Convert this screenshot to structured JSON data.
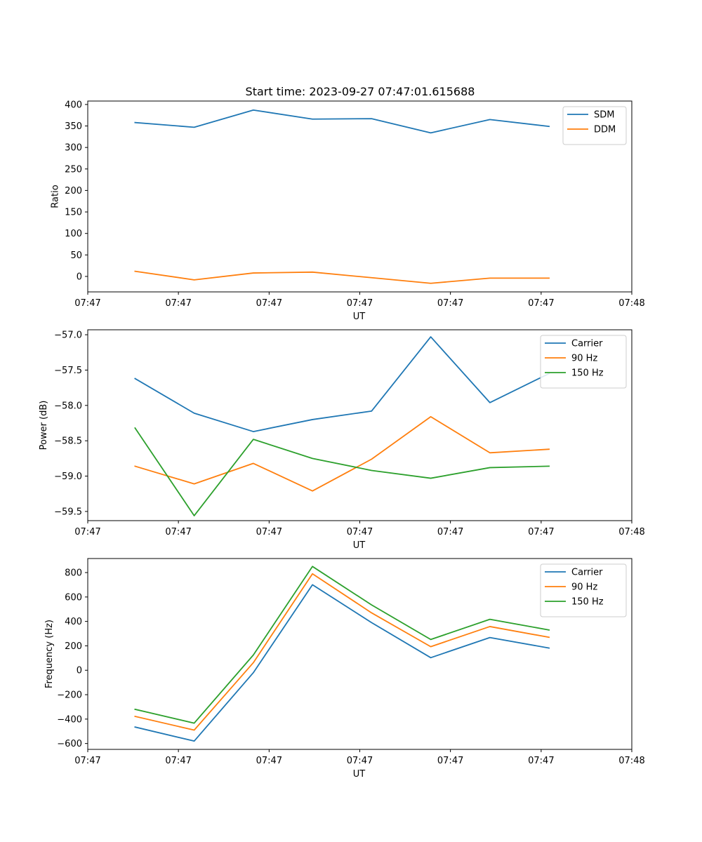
{
  "figure_title": "Start time: 2023-09-27 07:47:01.615688",
  "colors": {
    "blue": "#1f77b4",
    "orange": "#ff7f0e",
    "green": "#2ca02c",
    "axes": "#000000",
    "background": "#ffffff"
  },
  "chart_data": [
    {
      "type": "line",
      "xlabel": "UT",
      "ylabel": "Ratio",
      "x": [
        1,
        2,
        3,
        4,
        5,
        6,
        7,
        8
      ],
      "xlim": [
        0.2,
        9.4
      ],
      "xticks": [
        0.2,
        1.733,
        3.267,
        4.8,
        6.333,
        7.867,
        9.4
      ],
      "xtick_labels": [
        "07:47",
        "07:47",
        "07:47",
        "07:47",
        "07:47",
        "07:47",
        "07:48"
      ],
      "ylim": [
        -36,
        408
      ],
      "yticks": [
        0,
        50,
        100,
        150,
        200,
        250,
        300,
        350,
        400
      ],
      "ytick_labels": [
        "0",
        "50",
        "100",
        "150",
        "200",
        "250",
        "300",
        "350",
        "400"
      ],
      "legend_position": "upper-right",
      "series": [
        {
          "name": "SDM",
          "color": "#1f77b4",
          "values": [
            358,
            347,
            387,
            366,
            367,
            334,
            365,
            349
          ]
        },
        {
          "name": "DDM",
          "color": "#ff7f0e",
          "values": [
            12,
            -8,
            8,
            10,
            -3,
            -16,
            -4,
            -4
          ]
        }
      ]
    },
    {
      "type": "line",
      "xlabel": "UT",
      "ylabel": "Power (dB)",
      "x": [
        1,
        2,
        3,
        4,
        5,
        6,
        7,
        8
      ],
      "xlim": [
        0.2,
        9.4
      ],
      "xticks": [
        0.2,
        1.733,
        3.267,
        4.8,
        6.333,
        7.867,
        9.4
      ],
      "xtick_labels": [
        "07:47",
        "07:47",
        "07:47",
        "07:47",
        "07:47",
        "07:47",
        "07:48"
      ],
      "ylim": [
        -59.63,
        -56.93
      ],
      "yticks": [
        -59.5,
        -59.0,
        -58.5,
        -58.0,
        -57.5,
        -57.0
      ],
      "ytick_labels": [
        "−59.5",
        "−59.0",
        "−58.5",
        "−58.0",
        "−57.5",
        "−57.0"
      ],
      "legend_position": "upper-right",
      "series": [
        {
          "name": "Carrier",
          "color": "#1f77b4",
          "values": [
            -57.62,
            -58.11,
            -58.37,
            -58.2,
            -58.08,
            -57.03,
            -57.96,
            -57.55
          ]
        },
        {
          "name": "90 Hz",
          "color": "#ff7f0e",
          "values": [
            -58.86,
            -59.11,
            -58.82,
            -59.21,
            -58.76,
            -58.16,
            -58.67,
            -58.62
          ]
        },
        {
          "name": "150 Hz",
          "color": "#2ca02c",
          "values": [
            -58.32,
            -59.56,
            -58.48,
            -58.75,
            -58.92,
            -59.03,
            -58.88,
            -58.86
          ]
        }
      ]
    },
    {
      "type": "line",
      "xlabel": "UT",
      "ylabel": "Frequency (Hz)",
      "x": [
        1,
        2,
        3,
        4,
        5,
        6,
        7,
        8
      ],
      "xlim": [
        0.2,
        9.4
      ],
      "xticks": [
        0.2,
        1.733,
        3.267,
        4.8,
        6.333,
        7.867,
        9.4
      ],
      "xtick_labels": [
        "07:47",
        "07:47",
        "07:47",
        "07:47",
        "07:47",
        "07:47",
        "07:48"
      ],
      "ylim": [
        -648,
        915
      ],
      "yticks": [
        -600,
        -400,
        -200,
        0,
        200,
        400,
        600,
        800
      ],
      "ytick_labels": [
        "−600",
        "−400",
        "−200",
        "0",
        "200",
        "400",
        "600",
        "800"
      ],
      "legend_position": "upper-right",
      "series": [
        {
          "name": "Carrier",
          "color": "#1f77b4",
          "values": [
            -465,
            -580,
            -20,
            700,
            390,
            103,
            268,
            182
          ]
        },
        {
          "name": "90 Hz",
          "color": "#ff7f0e",
          "values": [
            -378,
            -490,
            62,
            790,
            470,
            193,
            358,
            270
          ]
        },
        {
          "name": "150 Hz",
          "color": "#2ca02c",
          "values": [
            -320,
            -433,
            125,
            850,
            535,
            252,
            417,
            330
          ]
        }
      ]
    }
  ]
}
